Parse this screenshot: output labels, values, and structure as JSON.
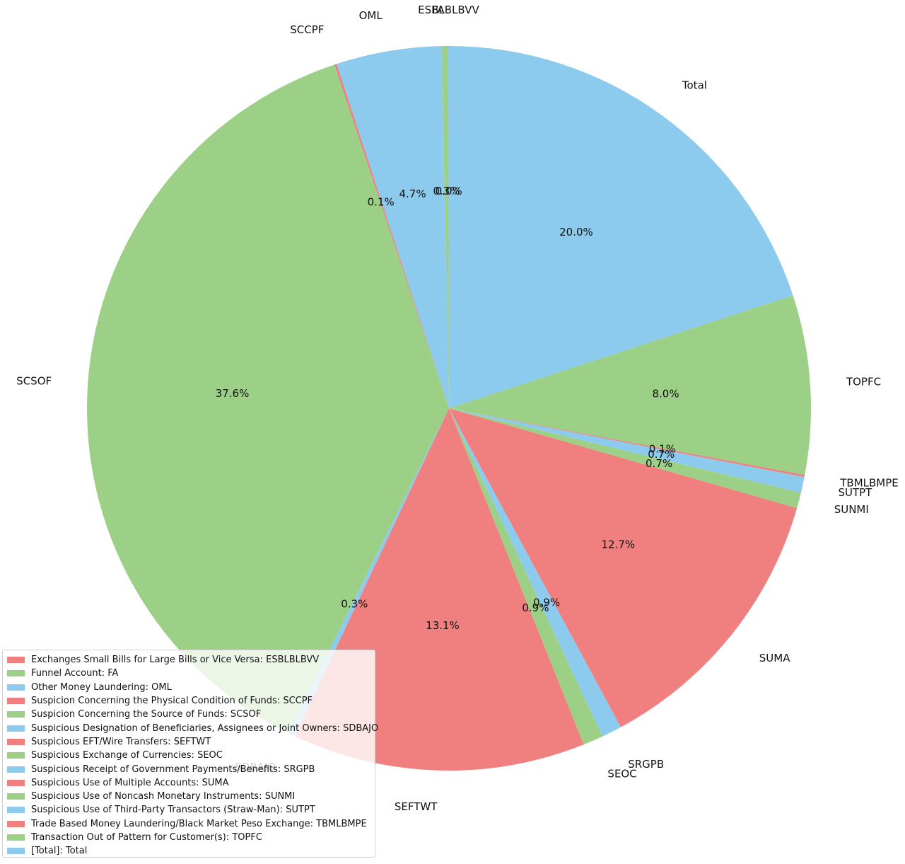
{
  "chart_data": {
    "type": "pie",
    "title": "",
    "start_angle_deg": 90,
    "direction": "counterclockwise",
    "center": [
      635,
      577
    ],
    "radius": 512,
    "label_distance": 1.1,
    "pct_distance": 0.6,
    "colors_cycle": [
      "#f08080",
      "#9cd087",
      "#8ccbee"
    ],
    "slices": [
      {
        "label": "ESBLBLBVV",
        "legend": "Exchanges Small Bills for Large Bills or Vice Versa: ESBLBLBVV",
        "pct": 0.0,
        "pct_text": "0.0%",
        "color": "#f08080"
      },
      {
        "label": "FA",
        "legend": "Funnel Account: FA",
        "pct": 0.3,
        "pct_text": "0.3%",
        "color": "#9cd087"
      },
      {
        "label": "OML",
        "legend": "Other Money Laundering: OML",
        "pct": 4.7,
        "pct_text": "4.7%",
        "color": "#8ccbee"
      },
      {
        "label": "SCCPF",
        "legend": "Suspicion Concerning the Physical Condition of Funds: SCCPF",
        "pct": 0.1,
        "pct_text": "0.1%",
        "color": "#f08080"
      },
      {
        "label": "SCSOF",
        "legend": "Suspicion Concerning the Source of Funds: SCSOF",
        "pct": 37.6,
        "pct_text": "37.6%",
        "color": "#9cd087"
      },
      {
        "label": "SDBAJO",
        "legend": "Suspicious Designation of Beneficiaries, Assignees or Joint Owners: SDBAJO",
        "pct": 0.3,
        "pct_text": "0.3%",
        "color": "#8ccbee"
      },
      {
        "label": "SEFTWT",
        "legend": "Suspicious EFT/Wire Transfers: SEFTWT",
        "pct": 13.1,
        "pct_text": "13.1%",
        "color": "#f08080"
      },
      {
        "label": "SEOC",
        "legend": "Suspicious Exchange of Currencies: SEOC",
        "pct": 0.9,
        "pct_text": "0.9%",
        "color": "#9cd087"
      },
      {
        "label": "SRGPB",
        "legend": "Suspicious Receipt of Government Payments/Benefits: SRGPB",
        "pct": 0.9,
        "pct_text": "0.9%",
        "color": "#8ccbee"
      },
      {
        "label": "SUMA",
        "legend": "Suspicious Use of Multiple Accounts: SUMA",
        "pct": 12.7,
        "pct_text": "12.7%",
        "color": "#f08080"
      },
      {
        "label": "SUNMI",
        "legend": "Suspicious Use of Noncash Monetary Instruments: SUNMI",
        "pct": 0.7,
        "pct_text": "0.7%",
        "color": "#9cd087"
      },
      {
        "label": "SUTPT",
        "legend": "Suspicious Use of Third-Party Transactors (Straw-Man): SUTPT",
        "pct": 0.7,
        "pct_text": "0.7%",
        "color": "#8ccbee"
      },
      {
        "label": "TBMLBMPE",
        "legend": "Trade Based Money Laundering/Black Market Peso Exchange: TBMLBMPE",
        "pct": 0.1,
        "pct_text": "0.1%",
        "color": "#f08080"
      },
      {
        "label": "TOPFC",
        "legend": "Transaction Out of Pattern for Customer(s): TOPFC",
        "pct": 8.0,
        "pct_text": "8.0%",
        "color": "#9cd087"
      },
      {
        "label": "Total",
        "legend": "[Total]: Total",
        "pct": 20.0,
        "pct_text": "20.0%",
        "color": "#8ccbee"
      }
    ],
    "legend_position": "lower left"
  }
}
